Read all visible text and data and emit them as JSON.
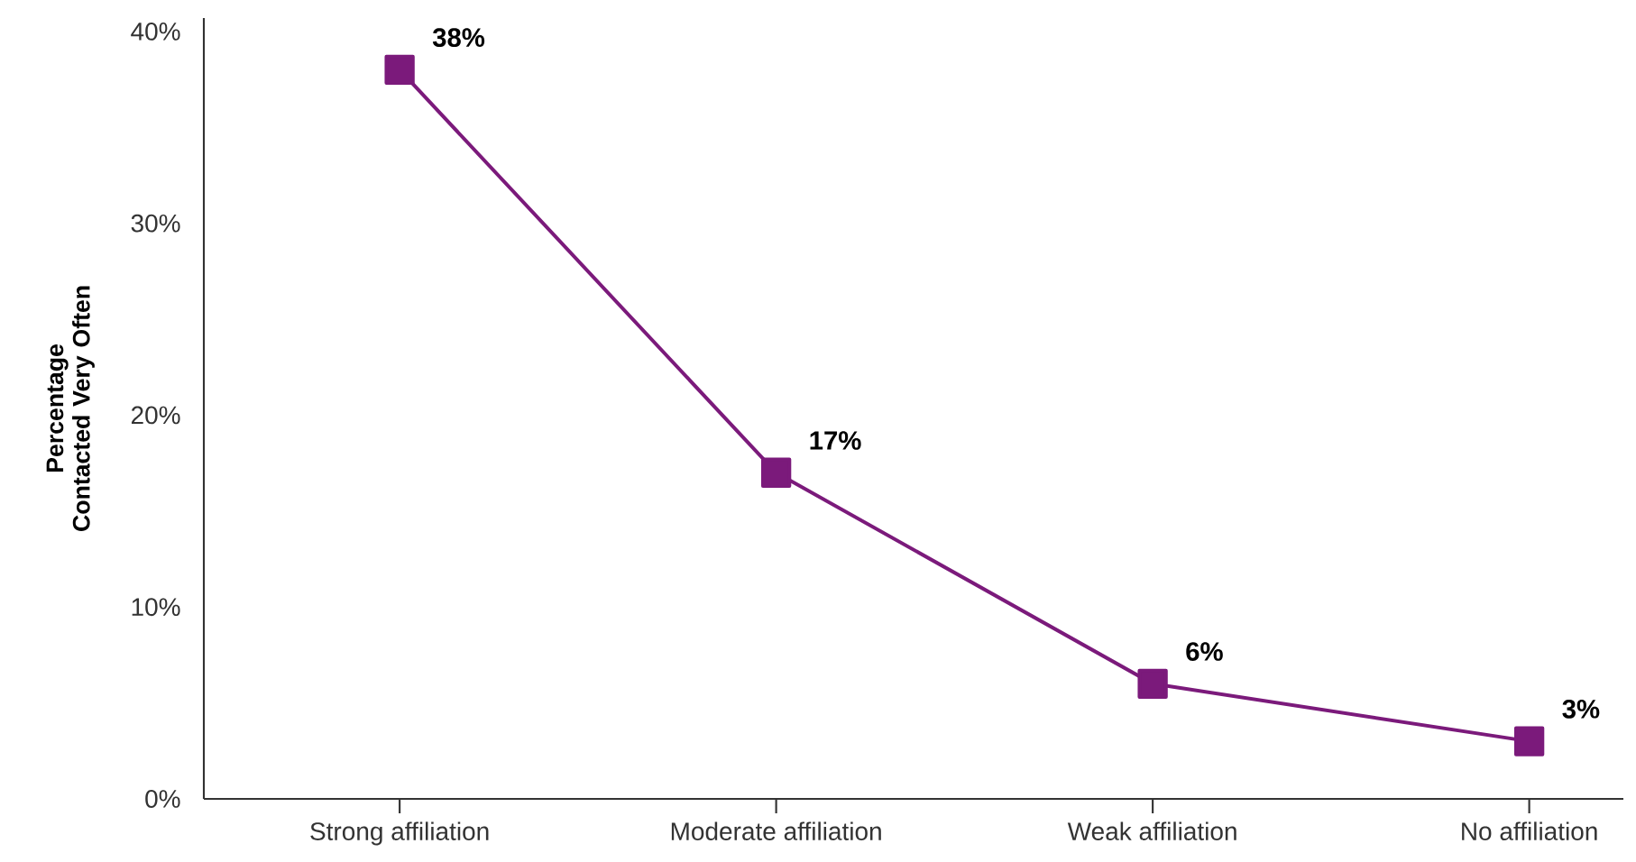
{
  "chart_data": {
    "type": "line",
    "ylabel": "Percentage Contacted Very Often",
    "categories": [
      "Strong affiliation",
      "Moderate affiliation",
      "Weak affiliation",
      "No affiliation"
    ],
    "values": [
      38,
      17,
      6,
      3
    ],
    "value_labels": [
      "38%",
      "17%",
      "6%",
      "3%"
    ],
    "color": "#7b1a7b",
    "marker": "square",
    "line_style": "solid",
    "grid": false,
    "ylim": [
      0,
      40.7
    ],
    "yticks": [
      {
        "value": 0,
        "label": "0%"
      },
      {
        "value": 10,
        "label": "10%"
      },
      {
        "value": 20,
        "label": "20%"
      },
      {
        "value": 30,
        "label": "30%"
      },
      {
        "value": 40,
        "label": "40%"
      }
    ]
  }
}
